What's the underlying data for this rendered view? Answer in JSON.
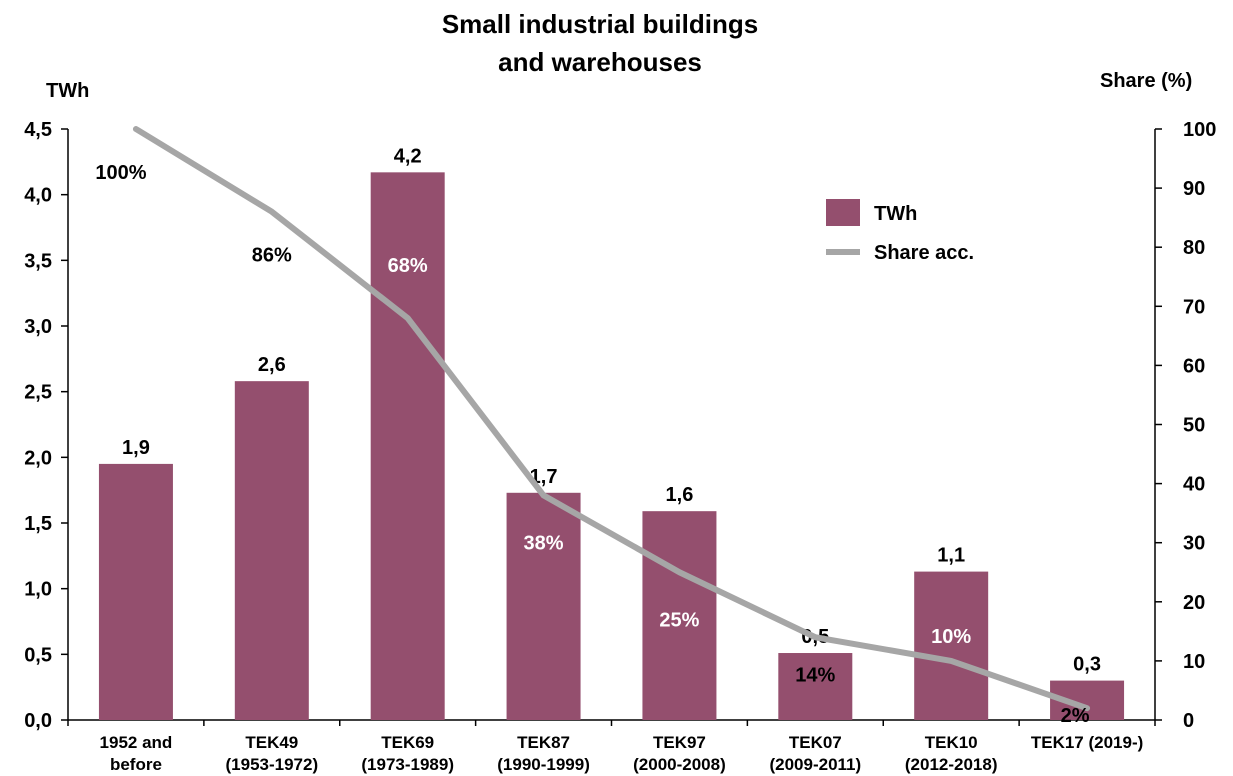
{
  "chart_data": {
    "type": "bar",
    "title_line1": "Small industrial buildings",
    "title_line2": "and warehouses",
    "y_left_label": "TWh",
    "y_right_label": "Share (%)",
    "ylim": [
      0,
      4.5
    ],
    "y2lim": [
      0,
      100
    ],
    "y_ticks": [
      "0,0",
      "0,5",
      "1,0",
      "1,5",
      "2,0",
      "2,5",
      "3,0",
      "3,5",
      "4,0",
      "4,5"
    ],
    "y2_ticks": [
      "0",
      "10",
      "20",
      "30",
      "40",
      "50",
      "60",
      "70",
      "80",
      "90",
      "100"
    ],
    "categories": [
      [
        "1952 and",
        "before"
      ],
      [
        "TEK49",
        "(1953-1972)"
      ],
      [
        "TEK69",
        "(1973-1989)"
      ],
      [
        "TEK87",
        "(1990-1999)"
      ],
      [
        "TEK97",
        "(2000-2008)"
      ],
      [
        "TEK07",
        "(2009-2011)"
      ],
      [
        "TEK10",
        "(2012-2018)"
      ],
      [
        "TEK17 (2019-)"
      ]
    ],
    "series": [
      {
        "name": "TWh",
        "type": "bar",
        "axis": "left",
        "color": "#944F6E",
        "values": [
          1.95,
          2.58,
          4.17,
          1.73,
          1.59,
          0.51,
          1.13,
          0.3
        ],
        "labels": [
          "1,9",
          "2,6",
          "4,2",
          "1,7",
          "1,6",
          "0,5",
          "1,1",
          "0,3"
        ]
      },
      {
        "name": "Share acc.",
        "type": "line",
        "axis": "right",
        "color": "#A6A6A6",
        "values": [
          100,
          86,
          68,
          38,
          25,
          14,
          10,
          2
        ],
        "labels": [
          "100%",
          "86%",
          "68%",
          "38%",
          "25%",
          "14%",
          "10%",
          "2%"
        ]
      }
    ],
    "legend_position": "upper-right"
  }
}
